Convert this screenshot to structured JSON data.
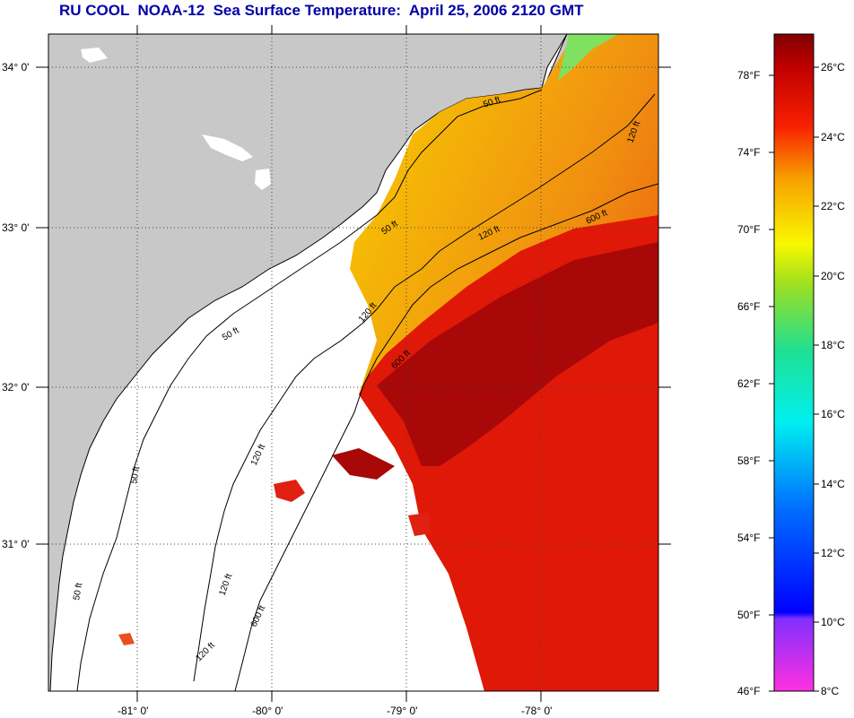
{
  "title": "RU COOL  NOAA-12  Sea Surface Temperature:  April 25, 2006 2120 GMT",
  "map": {
    "lat_labels": [
      "34° 0'",
      "33° 0'",
      "32° 0'",
      "31° 0'"
    ],
    "lon_labels": [
      "-81° 0'",
      "-80° 0'",
      "-79° 0'",
      "-78° 0'"
    ],
    "contour_labels": [
      "50 ft",
      "120 ft",
      "600 ft"
    ],
    "colors": {
      "land": "#c8c8c8",
      "no_data": "#ffffff",
      "warm_core": "#a00000",
      "warm": "#e01808",
      "mid": "#f07010",
      "cool": "#f8c000"
    }
  },
  "colorbar": {
    "fahrenheit_labels": [
      "78°F",
      "74°F",
      "70°F",
      "66°F",
      "62°F",
      "58°F",
      "54°F",
      "50°F",
      "46°F"
    ],
    "celsius_labels": [
      "26°C",
      "24°C",
      "22°C",
      "20°C",
      "18°C",
      "16°C",
      "14°C",
      "12°C",
      "10°C",
      "8°C"
    ]
  }
}
